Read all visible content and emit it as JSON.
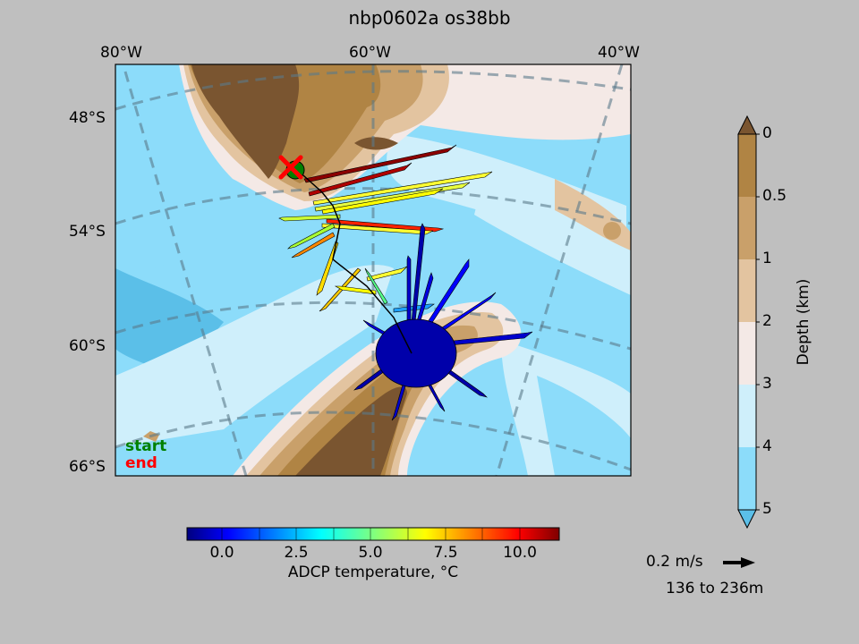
{
  "title": "nbp0602a os38bb",
  "map": {
    "lon_labels": [
      "80°W",
      "60°W",
      "40°W"
    ],
    "lat_labels": [
      "48°S",
      "54°S",
      "60°S",
      "66°S"
    ],
    "legend": {
      "start": "start",
      "end": "end"
    },
    "colors": {
      "deep5": "#5bbfe8",
      "deep4": "#8cdcfa",
      "deep3": "#cfeffb",
      "mid2": "#f4e9e6",
      "shelf1": "#e3c4a0",
      "shelf05": "#c9a06a",
      "shelf0": "#b08444",
      "land": "#7a5530",
      "start_marker": "#008000",
      "end_marker": "#ff0000"
    }
  },
  "depth_colorbar": {
    "label": "Depth (km)",
    "ticks": [
      "0",
      "0.5",
      "1",
      "2",
      "3",
      "4",
      "5"
    ],
    "colors": [
      "#b08444",
      "#c9a06a",
      "#e3c4a0",
      "#f4e9e6",
      "#cfeffb",
      "#8cdcfa",
      "#5bbfe8"
    ]
  },
  "temp_colorbar": {
    "label": "ADCP temperature, °C",
    "ticks": [
      "0.0",
      "2.5",
      "5.0",
      "7.5",
      "10.0"
    ],
    "range": [
      -1.2,
      11.3
    ]
  },
  "scale": {
    "label": "0.2 m/s",
    "depth_range": "136 to 236m"
  }
}
